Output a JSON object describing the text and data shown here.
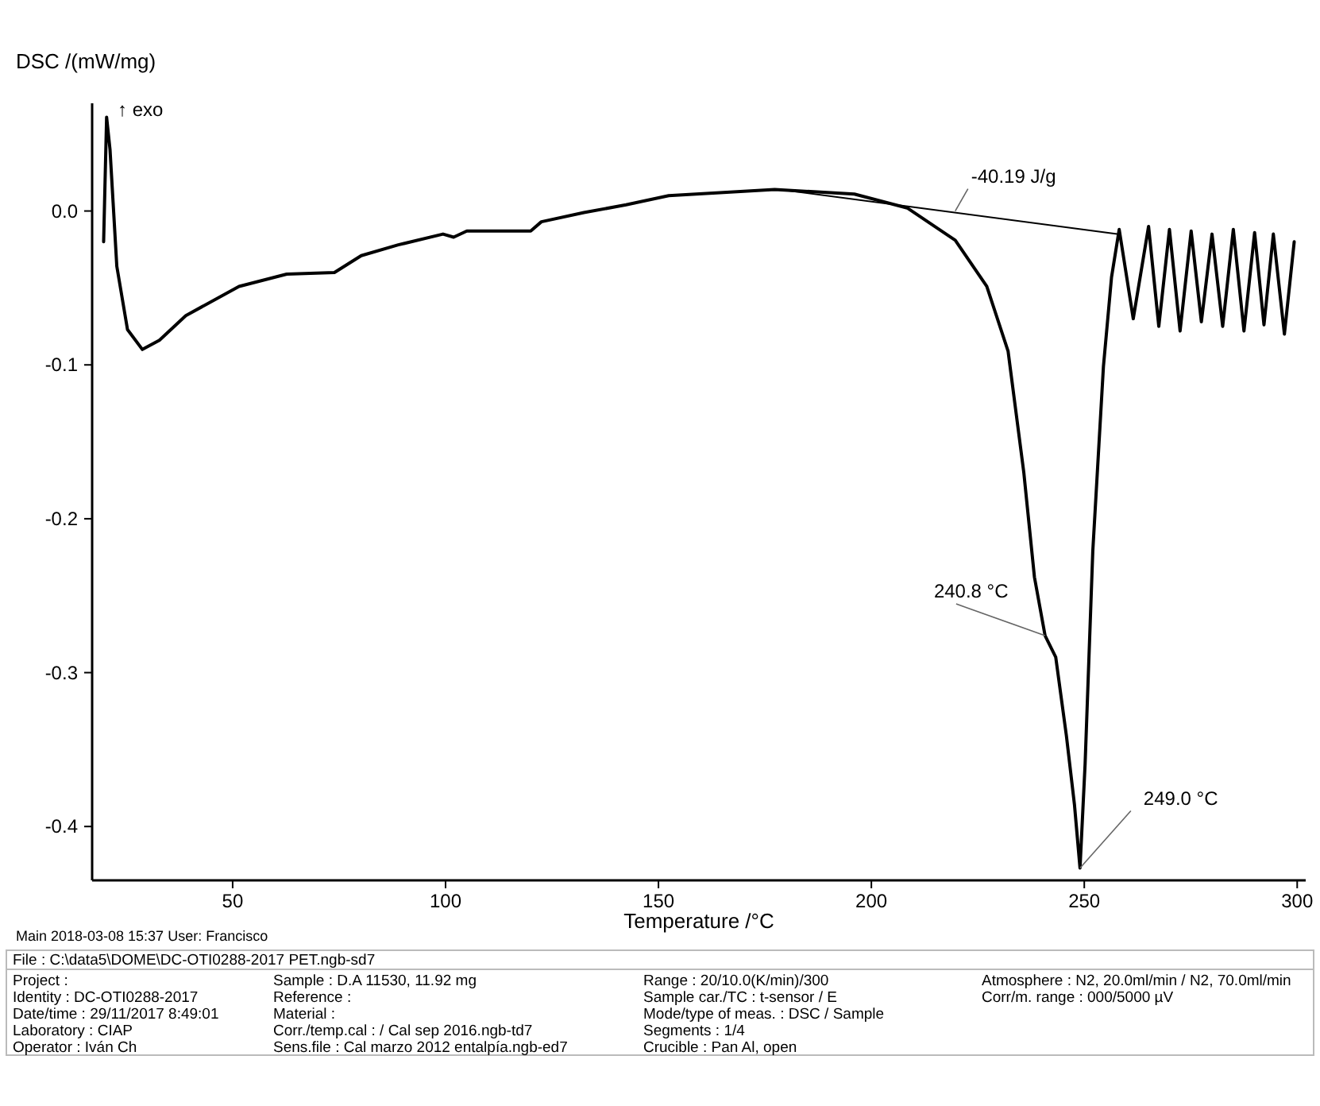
{
  "chart_data": {
    "type": "line",
    "xlabel": "Temperature /°C",
    "ylabel": "DSC /(mW/mg)",
    "xlim": [
      17,
      302
    ],
    "ylim": [
      -0.435,
      0.07
    ],
    "xticks": [
      50,
      100,
      150,
      200,
      250,
      300
    ],
    "yticks": [
      {
        "value": 0,
        "label": "0.0"
      },
      {
        "value": -0.1,
        "label": "-0.1"
      },
      {
        "value": -0.2,
        "label": "-0.2"
      },
      {
        "value": -0.3,
        "label": "-0.3"
      },
      {
        "value": -0.4,
        "label": "-0.4"
      }
    ],
    "grid": false,
    "marker": "none",
    "line_style": "solid",
    "series": [
      {
        "color": "#000000",
        "x": [
          19.7,
          20.4,
          21.2,
          22.8,
          25.3,
          28.8,
          32.8,
          39.0,
          51.5,
          62.7,
          73.9,
          80.2,
          88.9,
          99.4,
          101.9,
          105,
          120,
          122.5,
          132.5,
          142.4,
          152.4,
          177.3,
          196,
          208.4,
          219.7,
          227.1,
          232.1,
          235.8,
          238.3,
          240.8,
          243.3,
          245.8,
          247.7,
          249.0,
          250.2,
          252.0,
          254.5,
          256.4,
          258.2,
          261.5,
          265.1,
          267.5,
          270,
          272.5,
          275.1,
          277.5,
          280,
          282.5,
          285,
          287.5,
          290,
          292.2,
          294.4,
          297,
          299.3
        ],
        "values": [
          -0.02,
          0.061,
          0.04,
          -0.036,
          -0.077,
          -0.09,
          -0.084,
          -0.068,
          -0.049,
          -0.041,
          -0.04,
          -0.029,
          -0.022,
          -0.015,
          -0.017,
          -0.013,
          -0.013,
          -0.007,
          -0.001,
          0.004,
          0.01,
          0.014,
          0.011,
          0.002,
          -0.019,
          -0.049,
          -0.091,
          -0.17,
          -0.238,
          -0.276,
          -0.29,
          -0.341,
          -0.386,
          -0.427,
          -0.359,
          -0.221,
          -0.101,
          -0.043,
          -0.012,
          -0.07,
          -0.01,
          -0.075,
          -0.012,
          -0.078,
          -0.013,
          -0.072,
          -0.015,
          -0.075,
          -0.012,
          -0.078,
          -0.014,
          -0.074,
          -0.015,
          -0.08,
          -0.02
        ]
      },
      {
        "color": "#000000",
        "x": [
          178.5,
          257.7
        ],
        "values": [
          0.014,
          -0.015
        ]
      }
    ],
    "annotations": [
      {
        "text": "-40.19 J/g",
        "x": 219.7,
        "y": 0.0
      },
      {
        "text": "240.8 °C",
        "x": 240.8,
        "y": -0.276
      },
      {
        "text": "249.0 °C",
        "x": 249.0,
        "y": -0.427
      },
      "↑ exo",
      "Main  2018-03-08 15:37   User: Francisco",
      "File :  C:\\data5\\DOME\\DC-OTI0288-2017 PET.ngb-sd7",
      "Project :",
      "Identity :   DC-OTI0288-2017",
      "Date/time :   29/11/2017 8:49:01",
      "Laboratory :  CIAP",
      "Operator :   Iván Ch",
      "Sample :   D.A 11530, 11.92 mg",
      "Reference :",
      "Material :",
      "Corr./temp.cal :  / Cal sep 2016.ngb-td7",
      "Sens.file :   Cal marzo 2012 entalpía.ngb-ed7",
      "Range :   20/10.0(K/min)/300",
      "Sample car./TC :   t-sensor / E",
      "Mode/type of meas. :  DSC / Sample",
      "Segments :   1/4",
      "Crucible :   Pan Al, open",
      "Atmosphere :   N2, 20.0ml/min / N2, 70.0ml/min",
      "Corr/m. range :  000/5000 µV"
    ]
  }
}
